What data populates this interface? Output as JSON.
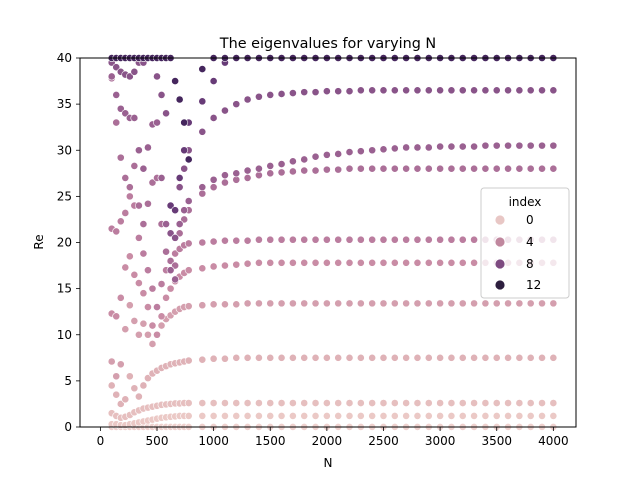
{
  "chart_data": {
    "type": "scatter",
    "title": "The eigenvalues for varying N",
    "xlabel": "N",
    "ylabel": "Re",
    "xlim": [
      -180,
      4200
    ],
    "ylim": [
      0,
      40
    ],
    "x_ticks": [
      0,
      500,
      1000,
      1500,
      2000,
      2500,
      3000,
      3500,
      4000
    ],
    "y_ticks": [
      0,
      5,
      10,
      15,
      20,
      25,
      30,
      35,
      40
    ],
    "grid": false,
    "legend": {
      "title": "index",
      "placement": "center-right",
      "entries": [
        {
          "label": "0",
          "color": "#e8c7c5"
        },
        {
          "label": "4",
          "color": "#c0879e"
        },
        {
          "label": "8",
          "color": "#7d4a80"
        },
        {
          "label": "12",
          "color": "#2d1e3e"
        }
      ]
    },
    "hue_colors": [
      "#efd2cf",
      "#ebc9c6",
      "#e6bfbf",
      "#dfb2b7",
      "#d49fae",
      "#c98ca5",
      "#bb7d9f",
      "#ab6f98",
      "#9a6191",
      "#895489",
      "#784781",
      "#673b77",
      "#56306c",
      "#45265d",
      "#2d1e3e"
    ],
    "N_values": [
      100,
      140,
      180,
      220,
      260,
      300,
      340,
      380,
      420,
      460,
      500,
      540,
      580,
      620,
      660,
      700,
      740,
      780,
      900,
      1000,
      1100,
      1200,
      1300,
      1400,
      1500,
      1600,
      1700,
      1800,
      1900,
      2000,
      2100,
      2200,
      2300,
      2400,
      2500,
      2600,
      2700,
      2800,
      2900,
      3000,
      3100,
      3200,
      3300,
      3400,
      3500,
      3600,
      3700,
      3800,
      3900,
      4000
    ],
    "series": [
      {
        "index": 0,
        "values": [
          0.01,
          0.01,
          0.01,
          0.01,
          0.01,
          0.01,
          0.01,
          0.01,
          0.01,
          0.01,
          0.01,
          0.01,
          0.01,
          0.01,
          0.01,
          0.01,
          0.01,
          0.01,
          0.01,
          0.01,
          0.01,
          0.01,
          0.01,
          0.01,
          0.01,
          0.01,
          0.01,
          0.01,
          0.01,
          0.01,
          0.01,
          0.01,
          0.01,
          0.01,
          0.01,
          0.01,
          0.01,
          0.01,
          0.01,
          0.01,
          0.01,
          0.01,
          0.01,
          0.01,
          0.01,
          0.01,
          0.01,
          0.01,
          0.01,
          0.01
        ]
      },
      {
        "index": 1,
        "values": [
          0.3,
          0.3,
          0.2,
          0.2,
          0.3,
          0.4,
          0.5,
          0.6,
          0.7,
          0.8,
          0.9,
          1.0,
          1.05,
          1.1,
          1.15,
          1.2,
          1.2,
          1.2,
          1.2,
          1.2,
          1.2,
          1.2,
          1.2,
          1.2,
          1.2,
          1.2,
          1.2,
          1.2,
          1.2,
          1.2,
          1.2,
          1.2,
          1.2,
          1.2,
          1.2,
          1.2,
          1.2,
          1.2,
          1.2,
          1.2,
          1.2,
          1.2,
          1.2,
          1.2,
          1.2,
          1.2,
          1.2,
          1.2,
          1.2,
          1.2
        ]
      },
      {
        "index": 2,
        "values": [
          1.5,
          1.2,
          1.0,
          1.1,
          1.3,
          1.6,
          1.8,
          2.0,
          2.1,
          2.2,
          2.3,
          2.4,
          2.45,
          2.5,
          2.55,
          2.55,
          2.6,
          2.6,
          2.6,
          2.6,
          2.6,
          2.6,
          2.6,
          2.6,
          2.6,
          2.6,
          2.6,
          2.6,
          2.6,
          2.6,
          2.6,
          2.6,
          2.6,
          2.6,
          2.6,
          2.6,
          2.6,
          2.6,
          2.6,
          2.6,
          2.6,
          2.6,
          2.6,
          2.6,
          2.6,
          2.6,
          2.6,
          2.6,
          2.6,
          2.6
        ]
      },
      {
        "index": 3,
        "values": [
          4.5,
          3.5,
          2.5,
          3.0,
          5.5,
          4.2,
          3.3,
          4.5,
          5.3,
          5.8,
          6.1,
          6.4,
          6.6,
          6.8,
          6.9,
          7.0,
          7.1,
          7.2,
          7.3,
          7.4,
          7.4,
          7.5,
          7.5,
          7.5,
          7.5,
          7.5,
          7.5,
          7.5,
          7.5,
          7.5,
          7.5,
          7.5,
          7.5,
          7.5,
          7.5,
          7.5,
          7.5,
          7.5,
          7.5,
          7.5,
          7.5,
          7.5,
          7.5,
          7.5,
          7.5,
          7.5,
          7.5,
          7.5,
          7.5,
          7.5
        ]
      },
      {
        "index": 4,
        "values": [
          7.1,
          5.5,
          6.8,
          10.6,
          13.2,
          11.5,
          10.0,
          11.2,
          10.0,
          9.0,
          10.0,
          11.0,
          11.7,
          12.1,
          12.5,
          12.8,
          13.0,
          13.1,
          13.2,
          13.3,
          13.3,
          13.3,
          13.4,
          13.4,
          13.4,
          13.4,
          13.4,
          13.4,
          13.4,
          13.4,
          13.4,
          13.4,
          13.4,
          13.4,
          13.4,
          13.4,
          13.4,
          13.4,
          13.4,
          13.4,
          13.4,
          13.4,
          13.4,
          13.4,
          13.4,
          13.4,
          13.4,
          13.4,
          13.4,
          13.4
        ]
      },
      {
        "index": 5,
        "values": [
          12.3,
          12.0,
          14.0,
          17.3,
          18.5,
          16.5,
          15.6,
          14.5,
          13.0,
          11.0,
          10.0,
          12.0,
          14.0,
          15.0,
          15.8,
          16.3,
          16.7,
          17.0,
          17.2,
          17.4,
          17.5,
          17.6,
          17.7,
          17.8,
          17.8,
          17.8,
          17.8,
          17.8,
          17.8,
          17.8,
          17.8,
          17.8,
          17.8,
          17.8,
          17.8,
          17.8,
          17.8,
          17.8,
          17.8,
          17.8,
          17.8,
          17.8,
          17.8,
          17.8,
          17.8,
          17.8,
          17.8,
          17.8,
          17.8,
          17.8
        ]
      },
      {
        "index": 6,
        "values": [
          21.5,
          21.2,
          22.3,
          23.2,
          25.0,
          24.0,
          20.5,
          18.8,
          17.0,
          15.0,
          13.0,
          15.5,
          17.0,
          18.0,
          18.8,
          19.3,
          19.7,
          19.9,
          20.0,
          20.1,
          20.2,
          20.2,
          20.2,
          20.3,
          20.3,
          20.3,
          20.3,
          20.3,
          20.3,
          20.3,
          20.3,
          20.3,
          20.3,
          20.3,
          20.3,
          20.3,
          20.3,
          20.3,
          20.3,
          20.3,
          20.3,
          20.3,
          20.3,
          20.3,
          20.3,
          20.3,
          20.3,
          20.3,
          20.3,
          20.3
        ]
      },
      {
        "index": 7,
        "values": [
          37.8,
          33.0,
          29.2,
          27.0,
          26.0,
          28.3,
          24.0,
          22.0,
          24.2,
          26.5,
          27.0,
          22.0,
          19.0,
          18.0,
          17.5,
          21.0,
          22.5,
          23.5,
          25.3,
          26.0,
          26.5,
          26.8,
          27.0,
          27.3,
          27.5,
          27.6,
          27.7,
          27.8,
          27.8,
          27.9,
          27.9,
          28.0,
          28.0,
          28.0,
          28.0,
          28.0,
          28.0,
          28.0,
          28.0,
          28.0,
          28.0,
          28.0,
          28.0,
          28.0,
          28.0,
          28.0,
          28.0,
          28.0,
          28.0,
          28.0
        ]
      },
      {
        "index": 8,
        "values": [
          38.0,
          36.0,
          34.5,
          34.0,
          33.5,
          33.5,
          30.0,
          28.0,
          30.3,
          32.8,
          33.0,
          27.0,
          22.0,
          17.0,
          16.0,
          22.0,
          23.5,
          24.5,
          26.0,
          26.8,
          27.3,
          27.5,
          27.8,
          28.0,
          28.3,
          28.5,
          28.8,
          29.0,
          29.3,
          29.5,
          29.6,
          29.8,
          29.9,
          30.0,
          30.1,
          30.2,
          30.3,
          30.3,
          30.3,
          30.4,
          30.4,
          30.4,
          30.4,
          30.5,
          30.5,
          30.5,
          30.5,
          30.5,
          30.5,
          30.5
        ]
      },
      {
        "index": 9,
        "values": [
          39.5,
          39.0,
          38.5,
          38.2,
          38.0,
          38.5,
          39.5,
          39.5,
          40.0,
          40.0,
          38.0,
          36.0,
          34.0,
          21.0,
          20.5,
          26.0,
          28.0,
          30.0,
          32.0,
          33.5,
          34.3,
          35.0,
          35.5,
          35.8,
          36.0,
          36.1,
          36.2,
          36.3,
          36.3,
          36.4,
          36.4,
          36.4,
          36.5,
          36.5,
          36.5,
          36.5,
          36.5,
          36.5,
          36.5,
          36.5,
          36.5,
          36.5,
          36.5,
          36.5,
          36.5,
          36.5,
          36.5,
          36.5,
          36.5,
          36.5
        ]
      },
      {
        "index": 11,
        "values": [
          40.0,
          40.0,
          40.0,
          40.0,
          40.0,
          40.0,
          40.0,
          40.0,
          40.0,
          40.0,
          40.0,
          40.0,
          40.0,
          24.0,
          23.5,
          27.0,
          30.0,
          33.0,
          35.3,
          37.5,
          39.5,
          40.0,
          40.0,
          40.0,
          40.0,
          40.0,
          40.0,
          40.0,
          40.0,
          40.0,
          40.0,
          40.0,
          40.0,
          40.0,
          40.0,
          40.0,
          40.0,
          40.0,
          40.0,
          40.0,
          40.0,
          40.0,
          40.0,
          40.0,
          40.0,
          40.0,
          40.0,
          40.0,
          40.0,
          40.0
        ]
      },
      {
        "index": 13,
        "values": [
          40.0,
          40.0,
          40.0,
          40.0,
          40.0,
          40.0,
          40.0,
          40.0,
          40.0,
          40.0,
          40.0,
          40.0,
          40.0,
          40.0,
          37.5,
          35.5,
          33.0,
          29.0,
          38.8,
          40.0,
          40.0,
          40.0,
          40.0,
          40.0,
          40.0,
          40.0,
          40.0,
          40.0,
          40.0,
          40.0,
          40.0,
          40.0,
          40.0,
          40.0,
          40.0,
          40.0,
          40.0,
          40.0,
          40.0,
          40.0,
          40.0,
          40.0,
          40.0,
          40.0,
          40.0,
          40.0,
          40.0,
          40.0,
          40.0,
          40.0
        ]
      }
    ]
  }
}
